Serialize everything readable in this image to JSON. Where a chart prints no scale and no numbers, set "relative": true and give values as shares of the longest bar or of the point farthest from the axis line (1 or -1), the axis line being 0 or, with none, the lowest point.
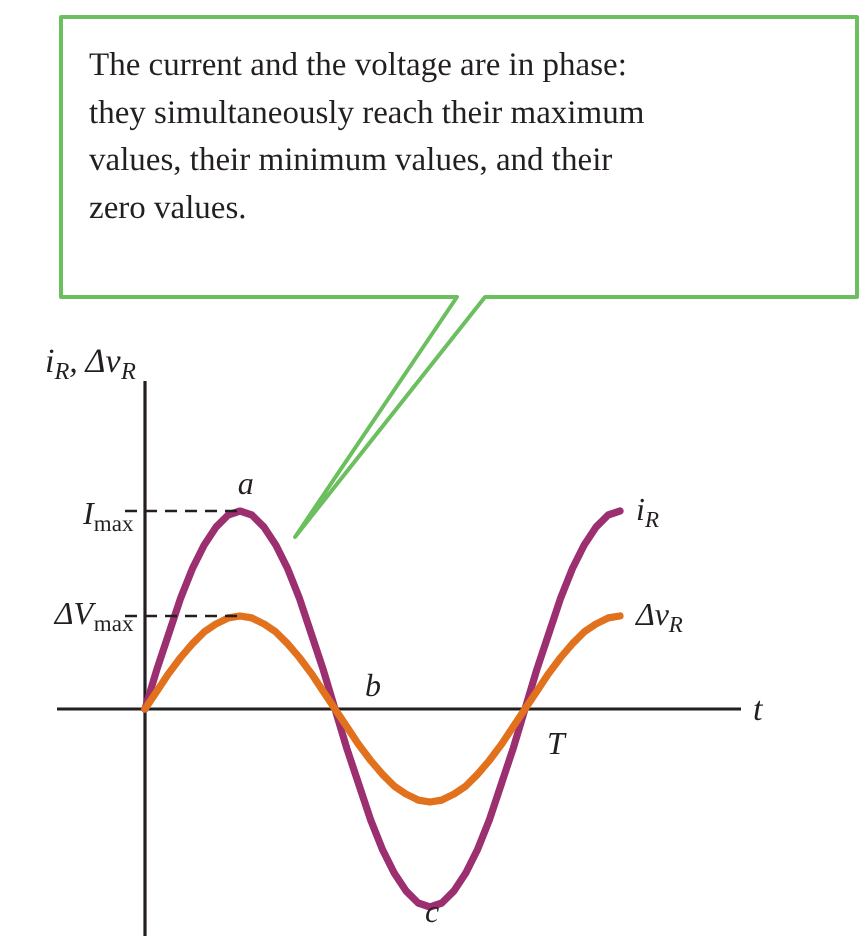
{
  "chart_data": {
    "type": "line",
    "relative": true,
    "tick_labels": false,
    "xlabel": "t",
    "ylabel": "i$_{R}$, Δv$_{R}$",
    "categories": [
      null,
      null,
      null,
      null,
      null,
      null,
      null,
      null,
      null,
      null,
      null,
      null,
      null,
      null,
      null,
      null,
      null,
      null,
      null,
      null,
      null,
      null,
      null,
      null,
      null,
      null,
      null,
      null,
      null,
      null,
      null,
      null,
      null,
      null,
      null,
      null,
      null,
      null,
      null,
      null,
      null
    ],
    "series": [
      {
        "name": "i$_{R}$",
        "color": "#9c2f6f",
        "values": [
          0,
          0.2,
          0.38,
          0.56,
          0.71,
          0.83,
          0.92,
          0.98,
          1,
          0.98,
          0.92,
          0.83,
          0.71,
          0.56,
          0.38,
          0.2,
          0,
          -0.2,
          -0.38,
          -0.56,
          -0.71,
          -0.83,
          -0.92,
          -0.98,
          -1,
          -0.98,
          -0.92,
          -0.83,
          -0.71,
          -0.56,
          -0.38,
          -0.2,
          0,
          0.2,
          0.38,
          0.56,
          0.71,
          0.83,
          0.92,
          0.98,
          1
        ]
      },
      {
        "name": "Δv$_{R}$",
        "color": "#e2711d",
        "values": [
          0,
          0.09,
          0.18,
          0.26,
          0.33,
          0.39,
          0.43,
          0.46,
          0.47,
          0.46,
          0.43,
          0.39,
          0.33,
          0.26,
          0.18,
          0.09,
          0,
          -0.09,
          -0.18,
          -0.26,
          -0.33,
          -0.39,
          -0.43,
          -0.46,
          -0.47,
          -0.46,
          -0.43,
          -0.39,
          -0.33,
          -0.26,
          -0.18,
          -0.09,
          0,
          0.09,
          0.18,
          0.26,
          0.33,
          0.39,
          0.43,
          0.46,
          0.47
        ]
      }
    ],
    "annotations": [
      "The current and the voltage are in phase: they simultaneously reach their maximum values, their minimum values, and their zero values.",
      "I$_{max}$",
      "ΔV$_{max}$",
      "a",
      "b",
      "c",
      "T"
    ]
  }
}
